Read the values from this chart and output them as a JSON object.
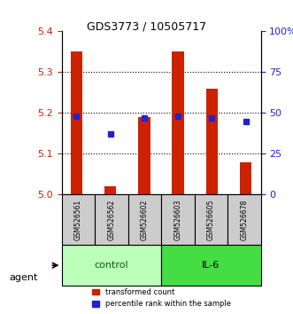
{
  "title": "GDS3773 / 10505717",
  "samples": [
    "GSM526561",
    "GSM526562",
    "GSM526602",
    "GSM526603",
    "GSM526605",
    "GSM526678"
  ],
  "groups": [
    "control",
    "control",
    "control",
    "IL-6",
    "IL-6",
    "IL-6"
  ],
  "red_values": [
    5.35,
    5.02,
    5.19,
    5.35,
    5.26,
    5.08
  ],
  "blue_values": [
    48,
    37,
    47,
    48,
    47,
    45
  ],
  "ylim_left": [
    5.0,
    5.4
  ],
  "ylim_right": [
    0,
    100
  ],
  "yticks_left": [
    5.0,
    5.1,
    5.2,
    5.3,
    5.4
  ],
  "yticks_right": [
    0,
    25,
    50,
    75,
    100
  ],
  "red_color": "#cc2200",
  "blue_color": "#2222cc",
  "bar_width": 0.35,
  "control_color": "#bbffbb",
  "il6_color": "#44dd44",
  "group_label_color": "#006600",
  "agent_text": "agent",
  "legend_red": "transformed count",
  "legend_blue": "percentile rank within the sample"
}
